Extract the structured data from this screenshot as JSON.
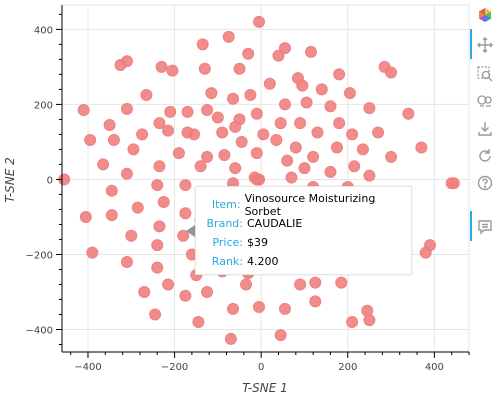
{
  "chart_data": {
    "type": "scatter",
    "title": "",
    "xlabel": "T-SNE 1",
    "ylabel": "T-SNE 2",
    "xlim": [
      -460,
      480
    ],
    "ylim": [
      -460,
      465
    ],
    "xticks": [
      -400,
      -200,
      0,
      200,
      400
    ],
    "yticks": [
      -400,
      -200,
      0,
      200,
      400
    ],
    "xtick_labels": [
      "−400",
      "−200",
      "0",
      "200",
      "400"
    ],
    "ytick_labels": [
      "−400",
      "−200",
      "0",
      "200",
      "400"
    ],
    "grid": true,
    "marker_color": "#f08080",
    "points": [
      [
        -5,
        420
      ],
      [
        -135,
        360
      ],
      [
        -75,
        380
      ],
      [
        -30,
        335
      ],
      [
        55,
        350
      ],
      [
        115,
        340
      ],
      [
        -230,
        300
      ],
      [
        -325,
        305
      ],
      [
        -310,
        315
      ],
      [
        -205,
        290
      ],
      [
        -130,
        295
      ],
      [
        -50,
        295
      ],
      [
        40,
        330
      ],
      [
        180,
        280
      ],
      [
        285,
        300
      ],
      [
        300,
        285
      ],
      [
        -410,
        185
      ],
      [
        -265,
        225
      ],
      [
        -210,
        180
      ],
      [
        -170,
        180
      ],
      [
        -115,
        230
      ],
      [
        -65,
        215
      ],
      [
        -25,
        225
      ],
      [
        20,
        255
      ],
      [
        85,
        270
      ],
      [
        95,
        250
      ],
      [
        140,
        240
      ],
      [
        205,
        230
      ],
      [
        -350,
        145
      ],
      [
        -310,
        188
      ],
      [
        -235,
        150
      ],
      [
        -170,
        125
      ],
      [
        -125,
        185
      ],
      [
        -60,
        140
      ],
      [
        -10,
        175
      ],
      [
        55,
        200
      ],
      [
        105,
        205
      ],
      [
        160,
        195
      ],
      [
        250,
        190
      ],
      [
        340,
        175
      ],
      [
        -395,
        105
      ],
      [
        -340,
        105
      ],
      [
        -275,
        120
      ],
      [
        -215,
        130
      ],
      [
        -155,
        120
      ],
      [
        -100,
        165
      ],
      [
        -50,
        160
      ],
      [
        5,
        120
      ],
      [
        45,
        150
      ],
      [
        90,
        150
      ],
      [
        130,
        125
      ],
      [
        180,
        150
      ],
      [
        210,
        120
      ],
      [
        270,
        125
      ],
      [
        -365,
        40
      ],
      [
        -295,
        80
      ],
      [
        -235,
        35
      ],
      [
        -190,
        70
      ],
      [
        -140,
        35
      ],
      [
        -90,
        125
      ],
      [
        -45,
        100
      ],
      [
        -10,
        70
      ],
      [
        35,
        105
      ],
      [
        80,
        85
      ],
      [
        120,
        60
      ],
      [
        175,
        85
      ],
      [
        235,
        80
      ],
      [
        300,
        60
      ],
      [
        370,
        85
      ],
      [
        -455,
        0
      ],
      [
        -310,
        15
      ],
      [
        -240,
        -15
      ],
      [
        -175,
        -15
      ],
      [
        -125,
        60
      ],
      [
        -85,
        65
      ],
      [
        -60,
        30
      ],
      [
        -15,
        5
      ],
      [
        60,
        50
      ],
      [
        100,
        30
      ],
      [
        160,
        20
      ],
      [
        215,
        35
      ],
      [
        250,
        10
      ],
      [
        -405,
        -100
      ],
      [
        -345,
        -30
      ],
      [
        -285,
        -75
      ],
      [
        -225,
        -60
      ],
      [
        -175,
        -90
      ],
      [
        -120,
        -40
      ],
      [
        -65,
        -10
      ],
      [
        -5,
        0
      ],
      [
        70,
        5
      ],
      [
        120,
        -20
      ],
      [
        200,
        -20
      ],
      [
        245,
        -55
      ],
      [
        -345,
        -95
      ],
      [
        -300,
        -150
      ],
      [
        -235,
        -125
      ],
      [
        -180,
        -150
      ],
      [
        -140,
        -110
      ],
      [
        -110,
        -145
      ],
      [
        -35,
        -130
      ],
      [
        -20,
        -170
      ],
      [
        -160,
        -200
      ],
      [
        -240,
        -175
      ],
      [
        -390,
        -195
      ],
      [
        -310,
        -220
      ],
      [
        -240,
        -235
      ],
      [
        -150,
        -255
      ],
      [
        -90,
        -245
      ],
      [
        -30,
        -250
      ],
      [
        390,
        -175
      ],
      [
        380,
        -195
      ],
      [
        -215,
        -280
      ],
      [
        -175,
        -310
      ],
      [
        -125,
        -300
      ],
      [
        -35,
        -280
      ],
      [
        90,
        -280
      ],
      [
        125,
        -275
      ],
      [
        185,
        -275
      ],
      [
        -270,
        -300
      ],
      [
        -245,
        -360
      ],
      [
        -145,
        -380
      ],
      [
        -65,
        -345
      ],
      [
        -5,
        -340
      ],
      [
        55,
        -345
      ],
      [
        125,
        -325
      ],
      [
        245,
        -350
      ],
      [
        250,
        -375
      ],
      [
        210,
        -380
      ],
      [
        -70,
        -425
      ],
      [
        45,
        -415
      ],
      [
        440,
        -10
      ],
      [
        445,
        -10
      ],
      [
        -5,
        0
      ],
      [
        -10,
        0
      ]
    ]
  },
  "tooltip": {
    "item_key": "Item:",
    "item_val": "Vinosource Moisturizing Sorbet",
    "brand_key": "Brand:",
    "brand_val": "CAUDALIE",
    "price_key": "Price:",
    "price_val": "$39",
    "rank_key": "Rank:",
    "rank_val": "4.200"
  },
  "toolbar": {
    "tools": [
      "bokeh-logo-icon",
      "pan-icon",
      "box-zoom-icon",
      "wheel-zoom-icon",
      "save-icon",
      "reset-icon",
      "help-icon",
      "hover-icon"
    ]
  }
}
